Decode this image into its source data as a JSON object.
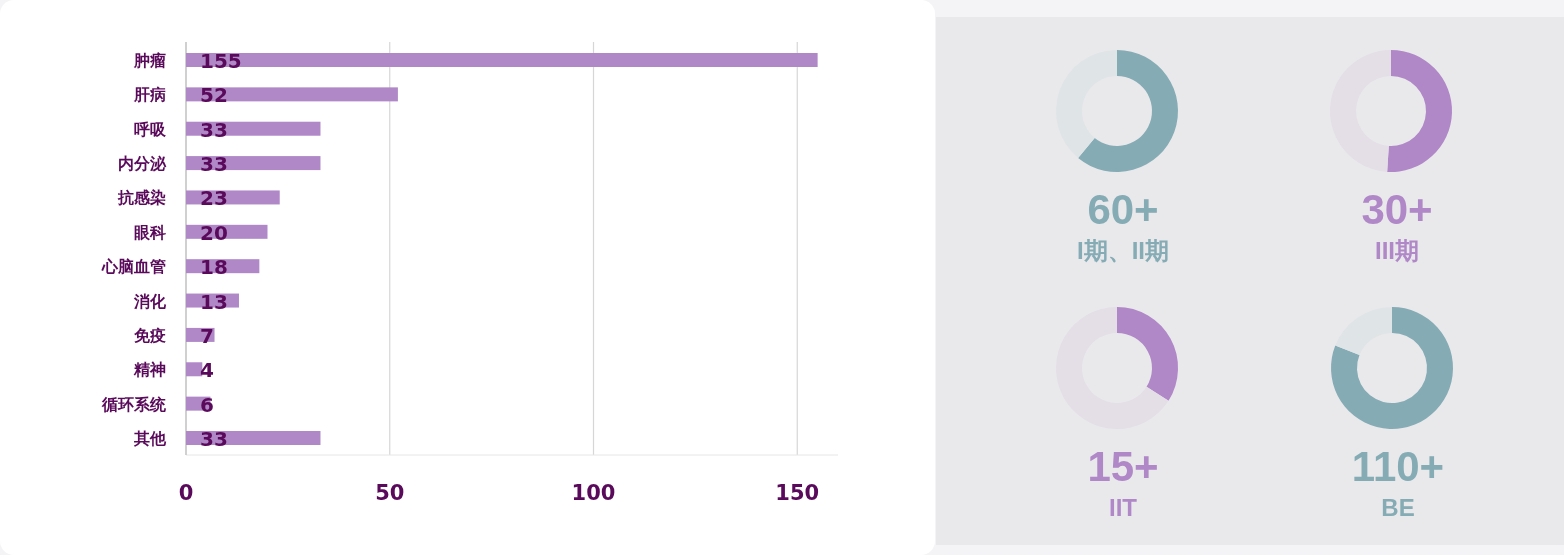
{
  "chart_data": [
    {
      "type": "bar",
      "orientation": "horizontal",
      "categories": [
        "肿瘤",
        "肝病",
        "呼吸",
        "内分泌",
        "抗感染",
        "眼科",
        "心脑血管",
        "消化",
        "免疫",
        "精神",
        "循环系统",
        "其他"
      ],
      "values": [
        155,
        52,
        33,
        33,
        23,
        20,
        18,
        13,
        7,
        4,
        6,
        33
      ],
      "color": "#b088c8",
      "data_labels": true,
      "xlim": [
        0,
        160
      ],
      "xticks": [
        0,
        50,
        100,
        150
      ],
      "grid": "x"
    },
    {
      "type": "donut",
      "title": "60+",
      "subtitle": "I期、II期",
      "categories": [
        null,
        null
      ],
      "values": [
        61,
        39
      ],
      "colors": [
        "#85abb5",
        "#dfe4e7"
      ]
    },
    {
      "type": "donut",
      "title": "30+",
      "subtitle": "III期",
      "categories": [
        null,
        null
      ],
      "values": [
        51,
        49
      ],
      "colors": [
        "#b087c7",
        "#e4dee6"
      ]
    },
    {
      "type": "donut",
      "title": "15+",
      "subtitle": "IIT",
      "categories": [
        null,
        null
      ],
      "values": [
        34,
        66
      ],
      "colors": [
        "#b087c7",
        "#e4dee6"
      ]
    },
    {
      "type": "donut",
      "title": "110+",
      "subtitle": "BE",
      "categories": [
        null,
        null
      ],
      "values": [
        81,
        19
      ],
      "colors": [
        "#85abb5",
        "#dfe4e7"
      ]
    }
  ]
}
